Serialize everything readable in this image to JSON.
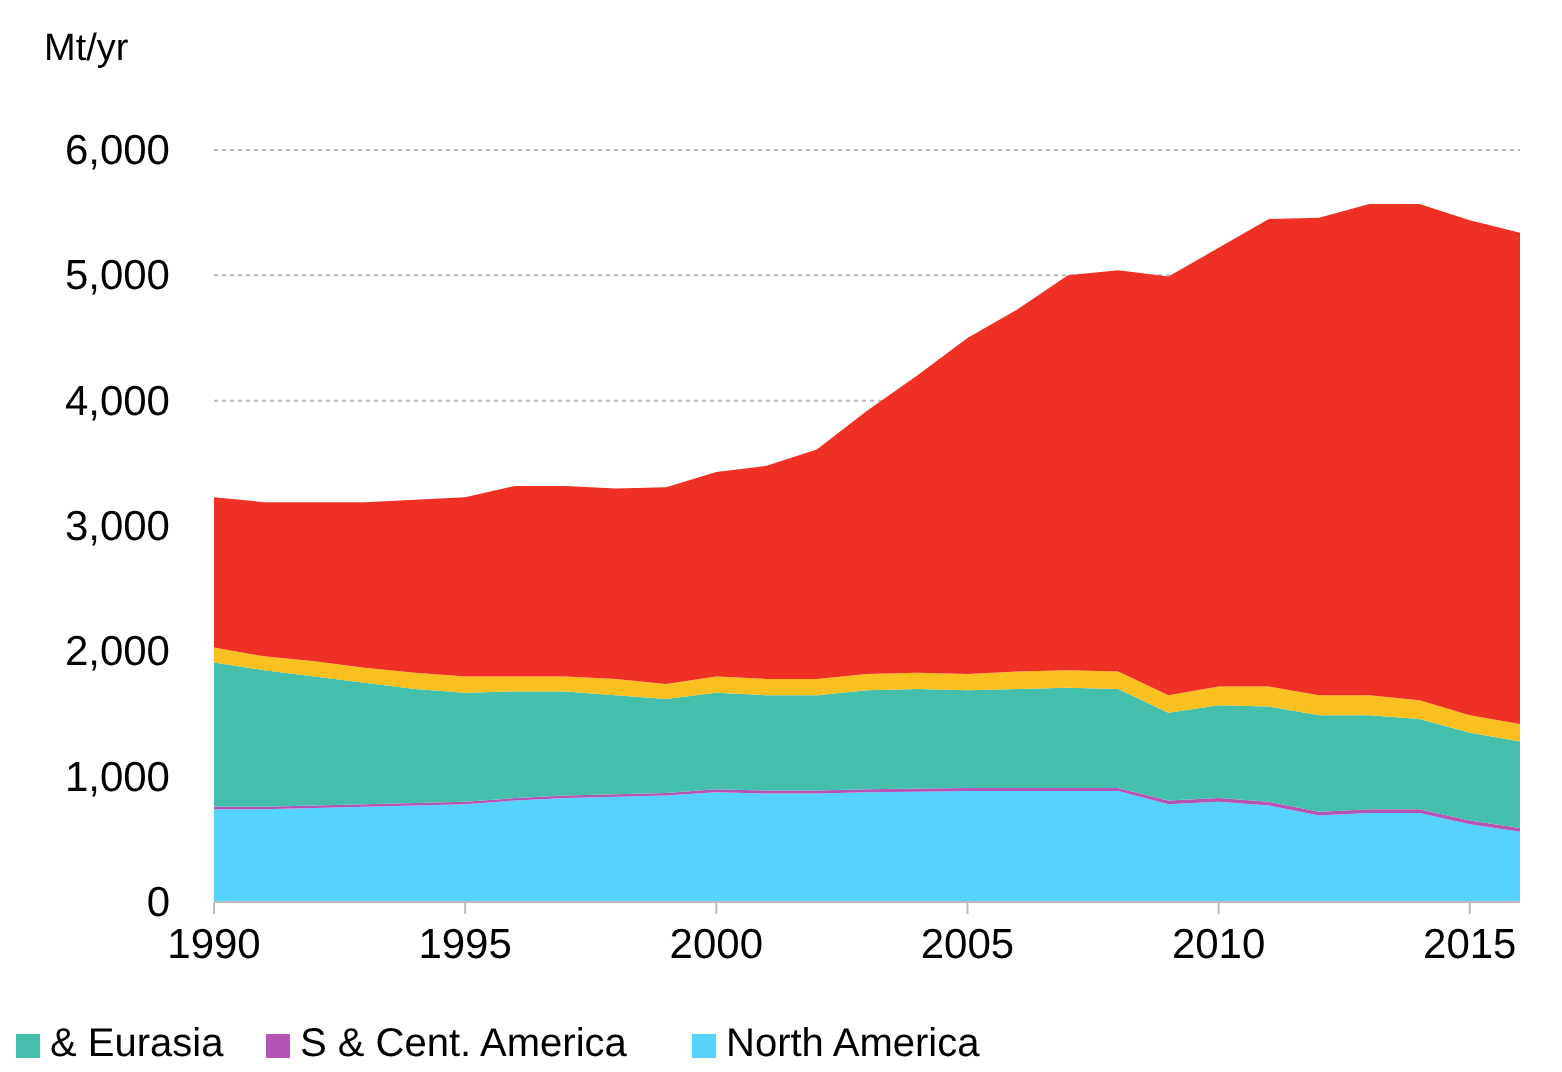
{
  "chart_data": {
    "type": "area",
    "stacked": true,
    "ylabel": "Mt/yr",
    "x": [
      1990,
      1991,
      1992,
      1993,
      1994,
      1995,
      1996,
      1997,
      1998,
      1999,
      2000,
      2001,
      2002,
      2003,
      2004,
      2005,
      2006,
      2007,
      2008,
      2009,
      2010,
      2011,
      2012,
      2013,
      2014,
      2015,
      2016
    ],
    "xlim": [
      1990,
      2016
    ],
    "xticks": [
      1990,
      1995,
      2000,
      2005,
      2010,
      2015
    ],
    "ylim": [
      0,
      6000
    ],
    "yticks": [
      {
        "value": 0,
        "label": "0"
      },
      {
        "value": 1000,
        "label": "1,000"
      },
      {
        "value": 2000,
        "label": "2,000"
      },
      {
        "value": 3000,
        "label": "3,000"
      },
      {
        "value": 4000,
        "label": "4,000"
      },
      {
        "value": 5000,
        "label": "5,000"
      },
      {
        "value": 6000,
        "label": "6,000"
      }
    ],
    "grid": "y",
    "legend": "bottom",
    "series": [
      {
        "name": "North America",
        "color": "#55d3fd",
        "values": [
          740,
          740,
          750,
          760,
          770,
          780,
          810,
          830,
          840,
          850,
          875,
          865,
          865,
          875,
          880,
          885,
          885,
          885,
          885,
          780,
          800,
          770,
          690,
          710,
          710,
          620,
          560
        ]
      },
      {
        "name": "S & Cent. America",
        "color": "#b455b5",
        "values": [
          20,
          20,
          20,
          20,
          20,
          20,
          20,
          20,
          20,
          20,
          25,
          25,
          25,
          25,
          25,
          25,
          25,
          25,
          25,
          30,
          30,
          30,
          30,
          30,
          30,
          30,
          30
        ]
      },
      {
        "name": "& Eurasia",
        "color": "#43bfab",
        "values": [
          1150,
          1090,
          1030,
          970,
          910,
          870,
          850,
          830,
          790,
          750,
          770,
          760,
          760,
          790,
          795,
          780,
          790,
          800,
          790,
          700,
          740,
          760,
          770,
          750,
          720,
          700,
          690
        ]
      },
      {
        "color": "#f9c020",
        "values": [
          120,
          110,
          120,
          120,
          130,
          130,
          120,
          120,
          130,
          120,
          130,
          130,
          130,
          130,
          130,
          130,
          140,
          140,
          140,
          140,
          150,
          160,
          160,
          160,
          150,
          140,
          140
        ]
      },
      {
        "color": "#ee3124",
        "values": [
          1200,
          1230,
          1270,
          1320,
          1380,
          1430,
          1520,
          1520,
          1520,
          1570,
          1630,
          1700,
          1830,
          2100,
          2370,
          2680,
          2890,
          3150,
          3200,
          3340,
          3500,
          3730,
          3810,
          3920,
          3960,
          3950,
          3920
        ]
      }
    ]
  }
}
